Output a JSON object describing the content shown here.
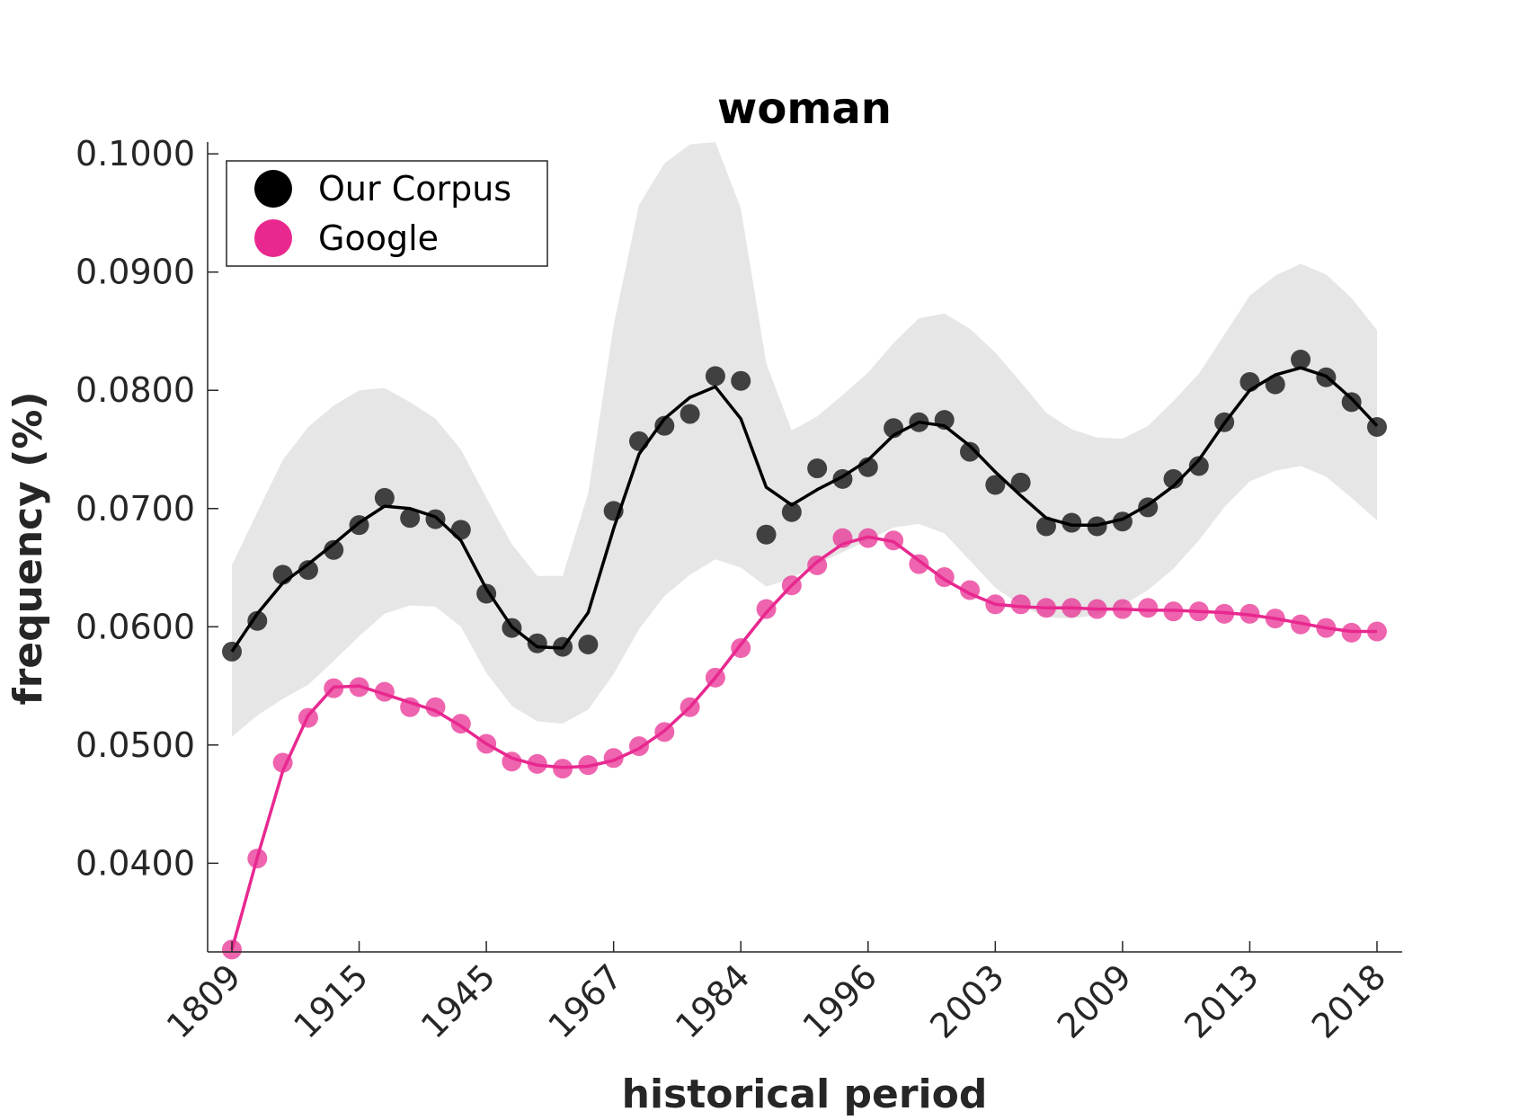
{
  "chart_data": {
    "type": "line",
    "title": "woman",
    "xlabel": "historical period",
    "ylabel": "frequency (%)",
    "ylim": [
      0.0325,
      0.101
    ],
    "x_tick_labels": [
      "1809",
      "1915",
      "1945",
      "1967",
      "1984",
      "1996",
      "2003",
      "2009",
      "2013",
      "2018"
    ],
    "y_tick_labels": [
      "0.0400",
      "0.0500",
      "0.0600",
      "0.0700",
      "0.0800",
      "0.0900",
      "0.1000"
    ],
    "y_ticks": [
      0.04,
      0.05,
      0.06,
      0.07,
      0.08,
      0.09,
      0.1
    ],
    "grid": false,
    "legend_position": "top-left",
    "legend": [
      "Our Corpus",
      "Google"
    ],
    "colors": {
      "corpus": "#000000",
      "google": "#e8288f",
      "band": "#e6e6e6"
    },
    "series": [
      {
        "name": "Our Corpus",
        "points": [
          0.0579,
          0.0605,
          0.0644,
          0.0648,
          0.0665,
          0.0686,
          0.0709,
          0.0692,
          0.0691,
          0.0682,
          0.0628,
          0.0599,
          0.0586,
          0.0583,
          0.0585,
          0.0698,
          0.0757,
          0.077,
          0.078,
          0.0812,
          0.0808,
          0.0678,
          0.0697,
          0.0734,
          0.0725,
          0.0735,
          0.0768,
          0.0773,
          0.0775,
          0.0748,
          0.072,
          0.0722,
          0.0685,
          0.0688,
          0.0685,
          0.0689,
          0.0701,
          0.0725,
          0.0736,
          0.0773,
          0.0807,
          0.0805,
          0.0826,
          0.0811,
          0.079,
          0.0769
        ],
        "smoothed": [
          0.0579,
          0.0611,
          0.0637,
          0.0653,
          0.067,
          0.0688,
          0.0702,
          0.07,
          0.0693,
          0.0673,
          0.0632,
          0.06,
          0.0583,
          0.0582,
          0.0612,
          0.0683,
          0.0746,
          0.0776,
          0.0794,
          0.0803,
          0.0776,
          0.0718,
          0.0703,
          0.0716,
          0.0727,
          0.0741,
          0.0762,
          0.0773,
          0.077,
          0.0753,
          0.0731,
          0.0711,
          0.0692,
          0.0686,
          0.0686,
          0.0691,
          0.0703,
          0.0719,
          0.0741,
          0.0772,
          0.08,
          0.0813,
          0.0819,
          0.0812,
          0.0793,
          0.077
        ],
        "band_upper": [
          0.0652,
          0.0697,
          0.0741,
          0.0769,
          0.0787,
          0.08,
          0.0802,
          0.079,
          0.0776,
          0.075,
          0.0709,
          0.067,
          0.0643,
          0.0643,
          0.0713,
          0.0855,
          0.0957,
          0.0992,
          0.1008,
          0.101,
          0.0954,
          0.0823,
          0.0766,
          0.0778,
          0.0796,
          0.0815,
          0.084,
          0.0861,
          0.0865,
          0.0852,
          0.0832,
          0.0807,
          0.0781,
          0.0767,
          0.076,
          0.0759,
          0.077,
          0.0791,
          0.0814,
          0.0847,
          0.088,
          0.0897,
          0.0907,
          0.0898,
          0.0878,
          0.0851
        ],
        "band_lower": [
          0.0507,
          0.0525,
          0.0539,
          0.0551,
          0.0571,
          0.0592,
          0.0611,
          0.0618,
          0.0617,
          0.06,
          0.0561,
          0.0533,
          0.052,
          0.0518,
          0.053,
          0.056,
          0.0598,
          0.0626,
          0.0644,
          0.0657,
          0.065,
          0.0634,
          0.0641,
          0.0653,
          0.0663,
          0.0673,
          0.0684,
          0.0687,
          0.0679,
          0.0656,
          0.0633,
          0.0618,
          0.0608,
          0.0607,
          0.061,
          0.0618,
          0.0631,
          0.0649,
          0.0673,
          0.0701,
          0.0723,
          0.0732,
          0.0736,
          0.0727,
          0.0709,
          0.069
        ]
      },
      {
        "name": "Google",
        "points": [
          0.0327,
          0.0404,
          0.0485,
          0.0523,
          0.0548,
          0.0549,
          0.0545,
          0.0532,
          0.0532,
          0.0518,
          0.0501,
          0.0486,
          0.0484,
          0.048,
          0.0483,
          0.0489,
          0.0499,
          0.0511,
          0.0532,
          0.0557,
          0.0582,
          0.0615,
          0.0635,
          0.0652,
          0.0675,
          0.0675,
          0.0673,
          0.0653,
          0.0642,
          0.0631,
          0.0619,
          0.0619,
          0.0616,
          0.0616,
          0.0615,
          0.0615,
          0.0616,
          0.0613,
          0.0613,
          0.0611,
          0.0611,
          0.0607,
          0.0602,
          0.0599,
          0.0595,
          0.0596
        ],
        "smoothed": [
          0.0327,
          0.0405,
          0.0478,
          0.0525,
          0.0549,
          0.055,
          0.0543,
          0.0536,
          0.0529,
          0.0516,
          0.0501,
          0.0489,
          0.0483,
          0.0481,
          0.0482,
          0.0487,
          0.0497,
          0.0512,
          0.0532,
          0.0557,
          0.0585,
          0.0612,
          0.0635,
          0.0655,
          0.067,
          0.0676,
          0.0672,
          0.0656,
          0.064,
          0.0628,
          0.0619,
          0.0617,
          0.0616,
          0.0616,
          0.0615,
          0.0615,
          0.0614,
          0.0614,
          0.0613,
          0.0612,
          0.061,
          0.0607,
          0.0603,
          0.0599,
          0.0596,
          0.0596
        ]
      }
    ]
  }
}
